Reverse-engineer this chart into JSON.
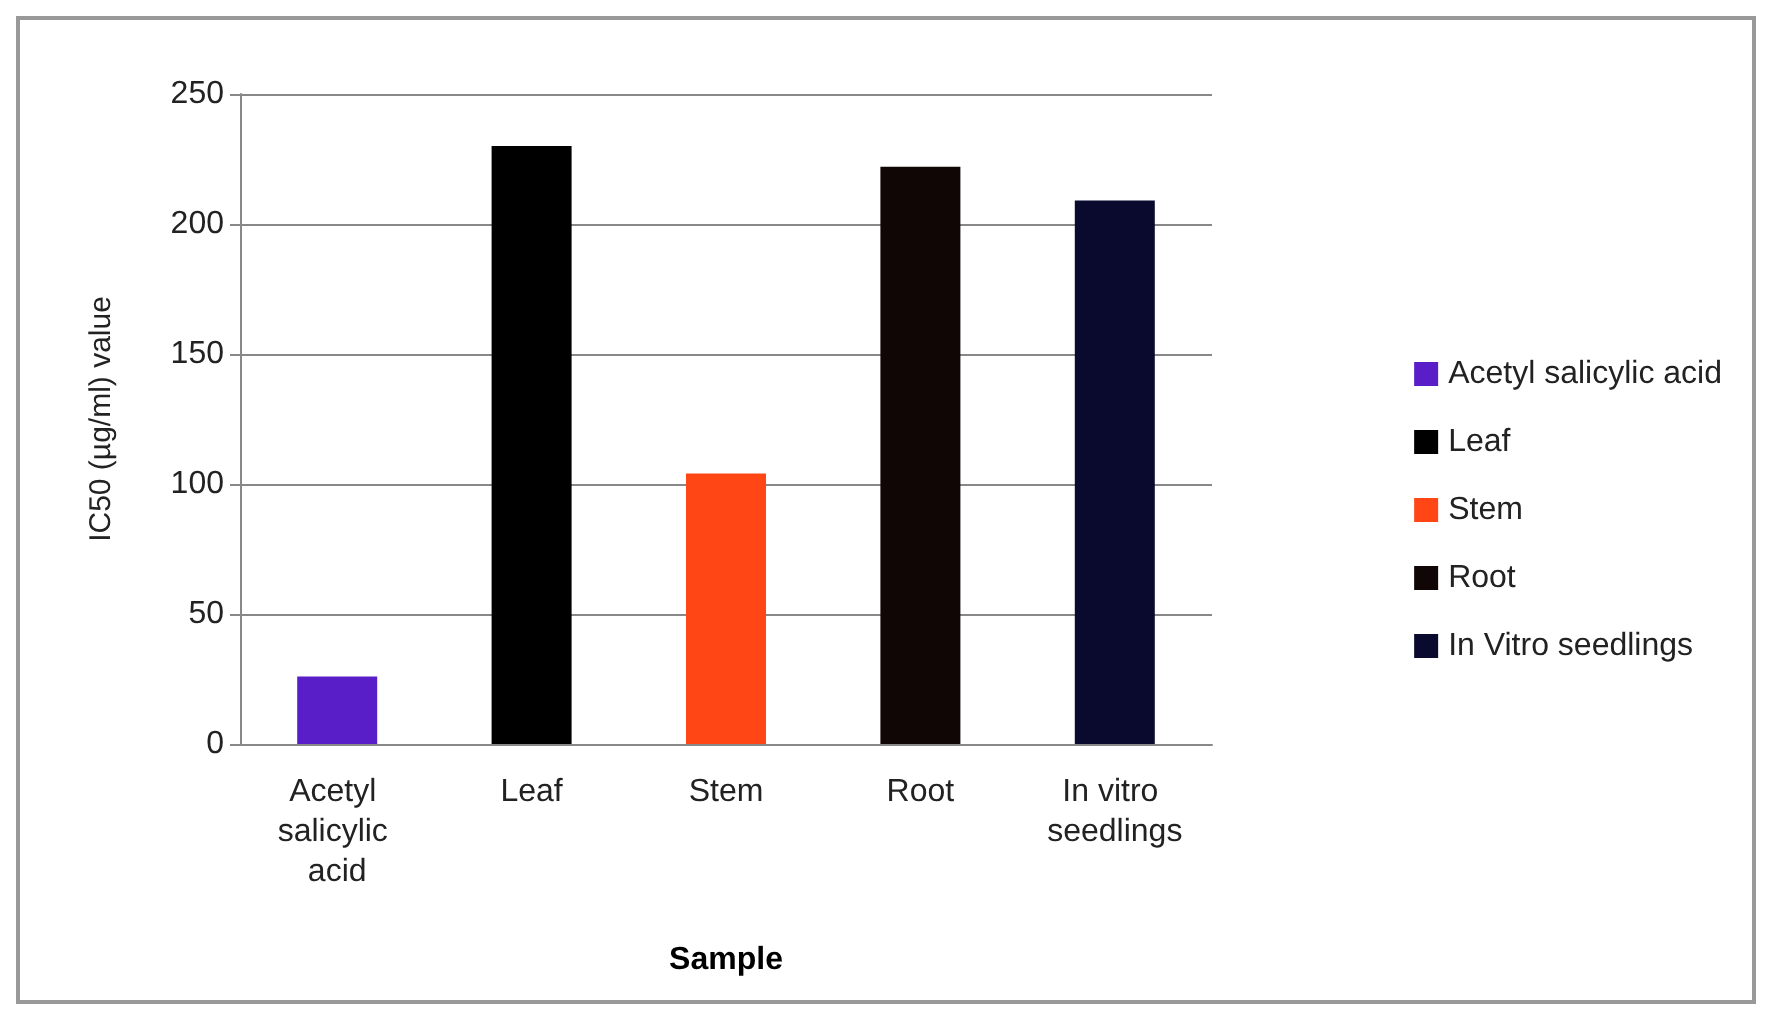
{
  "chart_data": {
    "type": "bar",
    "xlabel": "Sample",
    "ylabel": "IC50 (µg/ml) value",
    "categories": [
      "Acetyl salicylic acid",
      "Leaf",
      "Stem",
      "Root",
      "In vitro seedlings"
    ],
    "series": [
      {
        "name": "Acetyl salicylic acid",
        "color": "#5a1ec8",
        "values": [
          26,
          null,
          null,
          null,
          null
        ]
      },
      {
        "name": "Leaf",
        "color": "#000000",
        "values": [
          null,
          230,
          null,
          null,
          null
        ]
      },
      {
        "name": "Stem",
        "color": "#ff4614",
        "values": [
          null,
          null,
          104,
          null,
          null
        ]
      },
      {
        "name": "Root",
        "color": "#100606",
        "values": [
          null,
          null,
          null,
          222,
          null
        ]
      },
      {
        "name": "In Vitro seedlings",
        "color": "#0a0a2e",
        "values": [
          null,
          null,
          null,
          null,
          209
        ]
      }
    ],
    "ylim": [
      0,
      250
    ],
    "yticks": [
      0,
      50,
      100,
      150,
      200,
      250
    ],
    "grid": "y",
    "legend": "right"
  }
}
